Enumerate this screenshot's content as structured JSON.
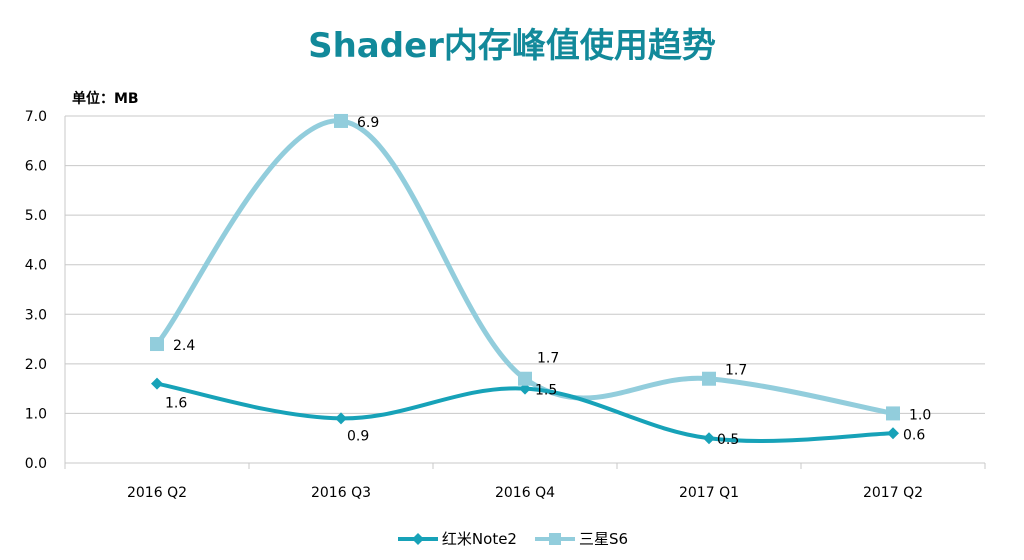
{
  "chart_data": {
    "type": "line",
    "title": "Shader内存峰值使用趋势",
    "ylabel": "单位：MB",
    "xlabel": "",
    "categories": [
      "2016 Q2",
      "2016 Q3",
      "2016 Q4",
      "2017 Q1",
      "2017 Q2"
    ],
    "ylim": [
      0,
      7
    ],
    "yticks": [
      "0.0",
      "1.0",
      "2.0",
      "3.0",
      "4.0",
      "5.0",
      "6.0",
      "7.0"
    ],
    "grid": true,
    "legend_position": "bottom",
    "series": [
      {
        "name": "红米Note2",
        "values": [
          1.6,
          0.9,
          1.5,
          0.5,
          0.6
        ],
        "color": "#17a2b8",
        "marker": "diamond",
        "labels": [
          "1.6",
          "0.9",
          "1.5",
          "0.5",
          "0.6"
        ]
      },
      {
        "name": "三星S6",
        "values": [
          2.4,
          6.9,
          1.7,
          1.7,
          1.0
        ],
        "color": "#92cddc",
        "marker": "square",
        "labels": [
          "2.4",
          "6.9",
          "1.7",
          "1.7",
          "1.0"
        ]
      }
    ]
  }
}
